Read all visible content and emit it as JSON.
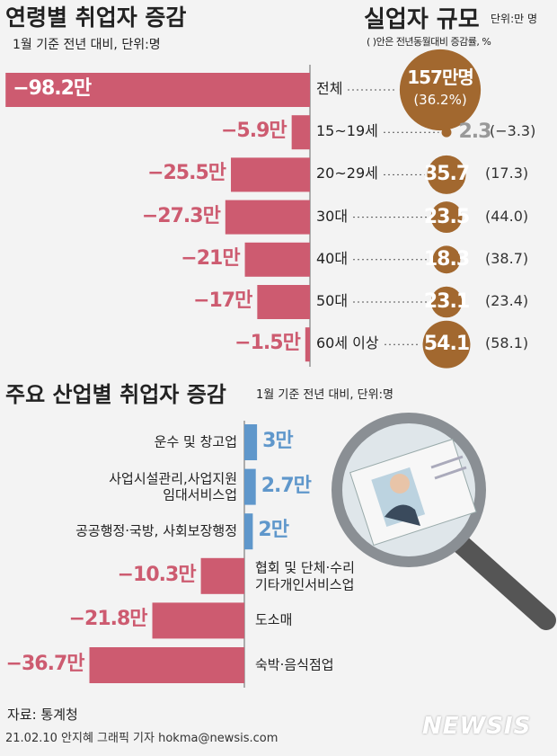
{
  "chart_data": [
    {
      "type": "bar",
      "title": "연령별 취업자 증감",
      "subtitle": "1월 기준 전년 대비, 단위:명",
      "categories": [
        "전체",
        "15~19세",
        "20~29세",
        "30대",
        "40대",
        "50대",
        "60세 이상"
      ],
      "values": [
        -98.2,
        -5.9,
        -25.5,
        -27.3,
        -21,
        -17,
        -1.5
      ],
      "value_labels": [
        "−98.2만",
        "−5.9만",
        "−25.5만",
        "−27.3만",
        "−21만",
        "−17만",
        "−1.5만"
      ],
      "color": "#cd5b70"
    },
    {
      "type": "bubble",
      "title": "실업자 규모",
      "unit": "단위:만 명",
      "note": "( )안은 전년동월대비 증감률, %",
      "values": [
        157,
        2.3,
        35.7,
        23.5,
        18.3,
        23.1,
        54.1
      ],
      "value_labels": [
        "157만명",
        "2.3",
        "35.7",
        "23.5",
        "18.3",
        "23.1",
        "54.1"
      ],
      "rates": [
        36.2,
        -3.3,
        17.3,
        44.0,
        38.7,
        23.4,
        58.1
      ],
      "rate_labels": [
        "(36.2%)",
        "(−3.3)",
        "(17.3)",
        "(44.0)",
        "(38.7)",
        "(23.4)",
        "(58.1)"
      ],
      "color": "#a2682f"
    },
    {
      "type": "bar",
      "title": "주요 산업별 취업자 증감",
      "subtitle": "1월 기준 전년 대비, 단위:명",
      "categories": [
        "운수 및 창고업",
        "사업시설관리,사업지원\n임대서비스업",
        "공공행정·국방, 사회보장행정",
        "협회 및 단체·수리\n기타개인서비스업",
        "도소매",
        "숙박·음식점업"
      ],
      "values": [
        3,
        2.7,
        2,
        -10.3,
        -21.8,
        -36.7
      ],
      "value_labels": [
        "3만",
        "2.7만",
        "2만",
        "−10.3만",
        "−21.8만",
        "−36.7만"
      ],
      "color": "#cd5b70",
      "positive_color": "#5f97cb"
    }
  ],
  "source": "자료: 통계청",
  "credit": "21.02.10 안지혜 그래픽 기자 hokma@newsis.com",
  "logo": "NEWSIS"
}
